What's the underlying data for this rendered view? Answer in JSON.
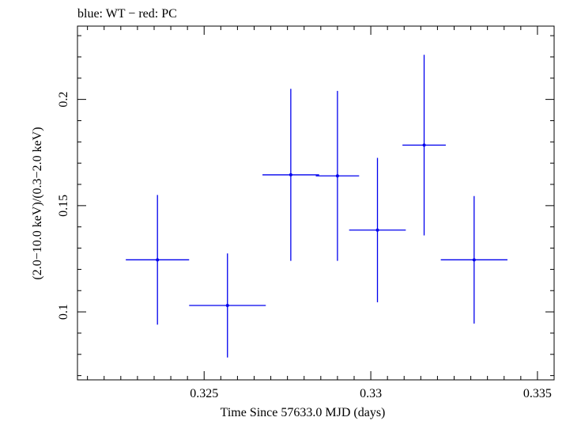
{
  "chart_data": {
    "type": "scatter",
    "title": "blue: WT − red: PC",
    "xlabel": "Time Since 57633.0 MJD (days)",
    "ylabel": "(2.0−10.0 keV)/(0.3−2.0 keV)",
    "xlim": [
      0.3212,
      0.3355
    ],
    "ylim": [
      0.068,
      0.2345
    ],
    "xticks": [
      0.325,
      0.33,
      0.335
    ],
    "xtick_labels": [
      "0.325",
      "0.33",
      "0.335"
    ],
    "yticks": [
      0.1,
      0.15,
      0.2
    ],
    "ytick_labels": [
      "0.1",
      "0.15",
      "0.2"
    ],
    "x_minor_step": 0.0005,
    "y_minor_step": 0.01,
    "grid": false,
    "series": [
      {
        "name": "WT",
        "color": "#0000ee",
        "points": [
          {
            "x": 0.3236,
            "xerr": 0.00095,
            "y": 0.1245,
            "yerr": 0.0305
          },
          {
            "x": 0.3257,
            "xerr": 0.00115,
            "y": 0.103,
            "yerr": 0.0245
          },
          {
            "x": 0.3276,
            "xerr": 0.00085,
            "y": 0.1645,
            "yerr": 0.0405
          },
          {
            "x": 0.329,
            "xerr": 0.00065,
            "y": 0.164,
            "yerr": 0.04
          },
          {
            "x": 0.3302,
            "xerr": 0.00085,
            "y": 0.1385,
            "yerr": 0.034
          },
          {
            "x": 0.3316,
            "xerr": 0.00065,
            "y": 0.1785,
            "yerr": 0.0425
          },
          {
            "x": 0.3331,
            "xerr": 0.001,
            "y": 0.1245,
            "yerr": 0.03
          }
        ]
      }
    ]
  }
}
